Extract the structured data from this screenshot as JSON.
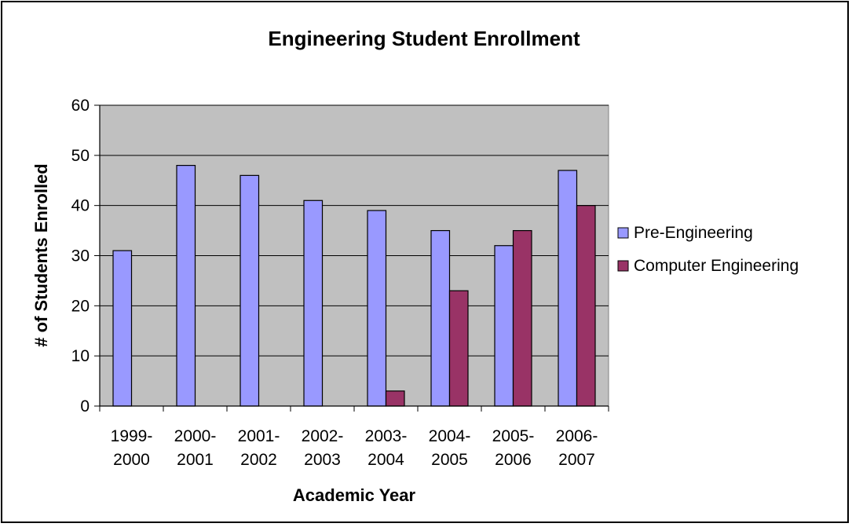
{
  "chart_data": {
    "type": "bar",
    "title": "Engineering Student Enrollment",
    "xlabel": "Academic Year",
    "ylabel": "# of Students Enrolled",
    "categories": [
      [
        "1999-",
        "2000"
      ],
      [
        "2000-",
        "2001"
      ],
      [
        "2001-",
        "2002"
      ],
      [
        "2002-",
        "2003"
      ],
      [
        "2003-",
        "2004"
      ],
      [
        "2004-",
        "2005"
      ],
      [
        "2005-",
        "2006"
      ],
      [
        "2006-",
        "2007"
      ]
    ],
    "series": [
      {
        "name": "Pre-Engineering",
        "color": "#9999ff",
        "values": [
          31,
          48,
          46,
          41,
          39,
          35,
          32,
          47
        ]
      },
      {
        "name": "Computer Engineering",
        "color": "#993366",
        "values": [
          0,
          0,
          0,
          0,
          3,
          23,
          35,
          40
        ]
      }
    ],
    "ylim": [
      0,
      60
    ],
    "yticks": [
      0,
      10,
      20,
      30,
      40,
      50,
      60
    ],
    "grid": true,
    "legend_position": "right",
    "plot_background": "#c0c0c0"
  }
}
